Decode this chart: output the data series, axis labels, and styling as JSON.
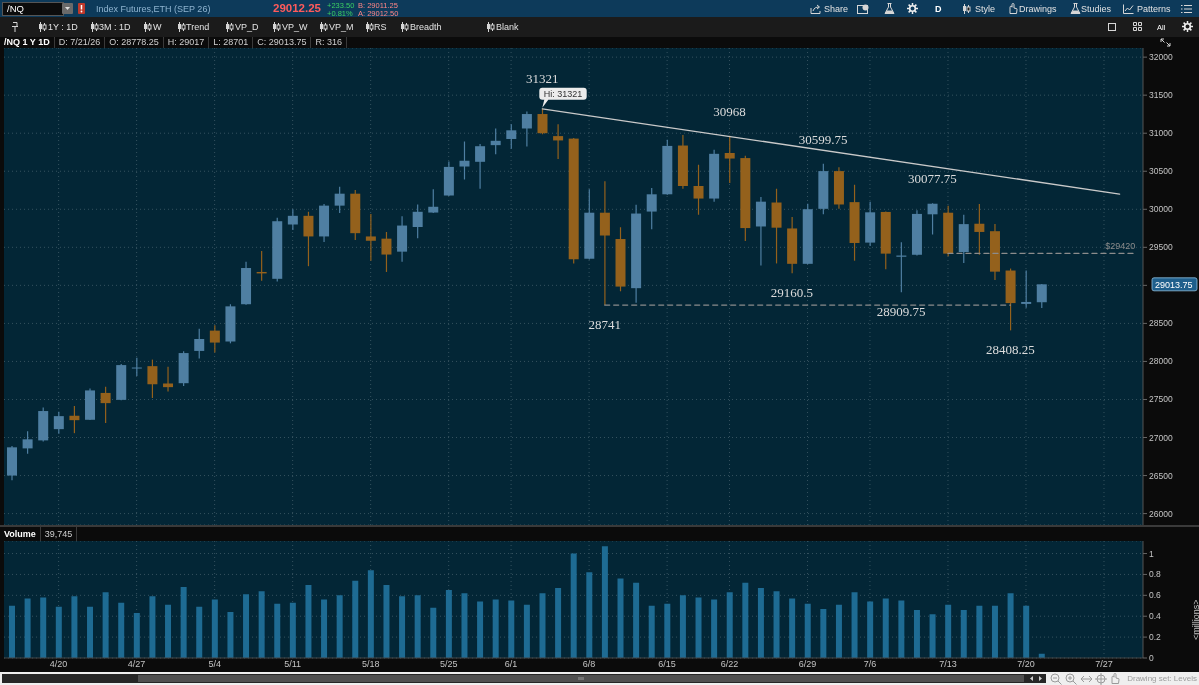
{
  "chart_data": [
    {
      "type": "other",
      "annotations": [
        "/NQ",
        "Index Futures,ETH (SEP 26)",
        "29012.25",
        "+233.50",
        "+0.81%",
        "B: 29011.25",
        "A: 29012.50",
        "Share",
        "D",
        "Style",
        "Drawings",
        "Studies",
        "Patterns",
        "1Y : 1D",
        "3M : 1D",
        "W",
        "Trend",
        "VP_D",
        "VP_W",
        "VP_M",
        "RS",
        "Breadth",
        "Blank",
        "All"
      ]
    },
    {
      "type": "candlestick",
      "title": "/NQ 1 Y 1D",
      "annotations": [
        "D: 7/21/26",
        "O: 28778.25",
        "H: 29017",
        "L: 28701",
        "C: 29013.75",
        "R: 316",
        {
          "text": "31321",
          "y": 31321
        },
        {
          "text": "Hi: 31321",
          "y": 31321
        },
        {
          "text": "30968",
          "y": 30968
        },
        {
          "text": "30599.75",
          "y": 30599.75
        },
        {
          "text": "30077.75",
          "y": 30077.75
        },
        {
          "text": "28741",
          "y": 28741
        },
        {
          "text": "29160.5",
          "y": 29160.5
        },
        {
          "text": "28909.75",
          "y": 28909.75
        },
        {
          "text": "28408.25",
          "y": 28408.25
        },
        {
          "text": "$29420",
          "y": 29420
        },
        "29013.75"
      ],
      "categories": [
        null,
        null,
        null,
        null,
        null,
        null,
        null,
        null,
        null,
        null,
        null,
        null,
        null,
        null,
        null,
        null,
        null,
        null,
        null,
        null,
        null,
        null,
        null,
        null,
        null,
        null,
        null,
        null,
        null,
        null,
        null,
        null,
        null,
        null,
        null,
        null,
        null,
        null,
        null,
        null,
        null,
        null,
        null,
        null,
        null,
        null,
        null,
        null,
        null,
        null,
        null,
        null,
        null,
        null,
        null,
        null,
        null,
        null,
        null,
        null,
        null,
        null,
        null,
        null,
        null,
        null,
        null,
        null,
        null,
        null,
        null,
        null,
        null
      ],
      "ohlc": [
        [
          26500,
          26890,
          26438,
          26871
        ],
        [
          26857,
          27081,
          26786,
          26976
        ],
        [
          26962,
          27395,
          26948,
          27348
        ],
        [
          27110,
          27338,
          27048,
          27281
        ],
        [
          27286,
          27414,
          27057,
          27228
        ],
        [
          27233,
          27643,
          27230,
          27619
        ],
        [
          27586,
          27667,
          27190,
          27452
        ],
        [
          27495,
          27967,
          27490,
          27952
        ],
        [
          27915,
          28048,
          27809,
          27920
        ],
        [
          27938,
          28024,
          27519,
          27700
        ],
        [
          27710,
          27929,
          27605,
          27662
        ],
        [
          27714,
          28133,
          27676,
          28110
        ],
        [
          28138,
          28428,
          28038,
          28295
        ],
        [
          28405,
          28476,
          28119,
          28248
        ],
        [
          28262,
          28752,
          28238,
          28724
        ],
        [
          28752,
          29310,
          28745,
          29228
        ],
        [
          29176,
          29452,
          29062,
          29157
        ],
        [
          29086,
          29890,
          29052,
          29843
        ],
        [
          29800,
          30000,
          29729,
          29914
        ],
        [
          29914,
          29967,
          29252,
          29643
        ],
        [
          29643,
          30071,
          29571,
          30048
        ],
        [
          30048,
          30295,
          29952,
          30205
        ],
        [
          30205,
          30252,
          29595,
          29686
        ],
        [
          29643,
          29938,
          29324,
          29586
        ],
        [
          29614,
          29700,
          29176,
          29405
        ],
        [
          29443,
          29910,
          29310,
          29786
        ],
        [
          29767,
          30062,
          29619,
          29967
        ],
        [
          29957,
          30262,
          29950,
          30033
        ],
        [
          30181,
          30629,
          30175,
          30557
        ],
        [
          30562,
          30890,
          30390,
          30638
        ],
        [
          30624,
          30857,
          30271,
          30829
        ],
        [
          30843,
          31062,
          30724,
          30900
        ],
        [
          30924,
          31119,
          30795,
          31038
        ],
        [
          31062,
          31286,
          30824,
          31252
        ],
        [
          31252,
          31321,
          30986,
          31000
        ],
        [
          30962,
          31119,
          30662,
          30905
        ],
        [
          30929,
          30938,
          29286,
          29343
        ],
        [
          29350,
          30264,
          29340,
          29955
        ],
        [
          29955,
          30368,
          28741,
          29655
        ],
        [
          29609,
          29763,
          28922,
          28984
        ],
        [
          28963,
          30058,
          28772,
          29944
        ],
        [
          29970,
          30280,
          29738,
          30197
        ],
        [
          30197,
          30915,
          30190,
          30833
        ],
        [
          30838,
          30977,
          30270,
          30306
        ],
        [
          30306,
          30585,
          29929,
          30141
        ],
        [
          30141,
          30781,
          30099,
          30729
        ],
        [
          30740,
          30968,
          30347,
          30667
        ],
        [
          30673,
          30704,
          29583,
          29753
        ],
        [
          29774,
          30161,
          29262,
          30100
        ],
        [
          30089,
          30270,
          29288,
          29758
        ],
        [
          29748,
          29898,
          29160.5,
          29283
        ],
        [
          29283,
          30073,
          29278,
          30001
        ],
        [
          30006,
          30599.75,
          29934,
          30502
        ],
        [
          30502,
          30554,
          30006,
          30063
        ],
        [
          30094,
          30321,
          29324,
          29557
        ],
        [
          29562,
          30099,
          29516,
          29960
        ],
        [
          29965,
          29970,
          29211,
          29417
        ],
        [
          29376,
          29567,
          28909.75,
          29392
        ],
        [
          29402,
          29986,
          29392,
          29939
        ],
        [
          29934,
          30077.75,
          29670,
          30073
        ],
        [
          29955,
          30048,
          29381,
          29417
        ],
        [
          29438,
          29929,
          29294,
          29805
        ],
        [
          29810,
          30068,
          29402,
          29702
        ],
        [
          29712,
          29805,
          29072,
          29180
        ],
        [
          29195,
          29221,
          28408.25,
          28767
        ],
        [
          28756,
          29195,
          28705,
          28782
        ],
        [
          28778.25,
          29017,
          28701,
          29013.75
        ],
        null,
        null,
        null,
        null,
        null,
        null
      ],
      "colors": [
        "#4f7fa2",
        "#4f7fa2",
        "#4f7fa2",
        "#4f7fa2",
        "#94611c",
        "#4f7fa2",
        "#94611c",
        "#4f7fa2",
        "#4f7fa2",
        "#94611c",
        "#94611c",
        "#4f7fa2",
        "#4f7fa2",
        "#94611c",
        "#4f7fa2",
        "#4f7fa2",
        "#94611c",
        "#4f7fa2",
        "#4f7fa2",
        "#94611c",
        "#4f7fa2",
        "#4f7fa2",
        "#94611c",
        "#94611c",
        "#94611c",
        "#4f7fa2",
        "#4f7fa2",
        "#4f7fa2",
        "#4f7fa2",
        "#4f7fa2",
        "#4f7fa2",
        "#4f7fa2",
        "#4f7fa2",
        "#4f7fa2",
        "#94611c",
        "#94611c",
        "#94611c",
        "#4f7fa2",
        "#94611c",
        "#94611c",
        "#4f7fa2",
        "#4f7fa2",
        "#4f7fa2",
        "#94611c",
        "#94611c",
        "#4f7fa2",
        "#94611c",
        "#94611c",
        "#4f7fa2",
        "#94611c",
        "#94611c",
        "#4f7fa2",
        "#4f7fa2",
        "#94611c",
        "#94611c",
        "#4f7fa2",
        "#94611c",
        "#4f7fa2",
        "#4f7fa2",
        "#4f7fa2",
        "#94611c",
        "#4f7fa2",
        "#94611c",
        "#94611c",
        "#94611c",
        "#4f7fa2",
        "#4f7fa2",
        null,
        null,
        null,
        null,
        null,
        null
      ],
      "series": [
        {
          "type": "line",
          "color": "#c9c9c9",
          "line_style": "solid",
          "values": [
            null,
            null,
            null,
            null,
            null,
            null,
            null,
            null,
            null,
            null,
            null,
            null,
            null,
            null,
            null,
            null,
            null,
            null,
            null,
            null,
            null,
            null,
            null,
            null,
            null,
            null,
            null,
            null,
            null,
            null,
            null,
            null,
            null,
            null,
            31321,
            null,
            null,
            null,
            null,
            null,
            null,
            null,
            null,
            null,
            null,
            null,
            null,
            null,
            null,
            null,
            null,
            null,
            null,
            null,
            null,
            null,
            null,
            null,
            null,
            null,
            null,
            null,
            null,
            null,
            null,
            null,
            null,
            null,
            null,
            null,
            null,
            30200,
            null
          ]
        },
        {
          "type": "line",
          "color": "#8c8c8c",
          "line_style": "dashed",
          "values": [
            null,
            null,
            null,
            null,
            null,
            null,
            null,
            null,
            null,
            null,
            null,
            null,
            null,
            null,
            null,
            null,
            null,
            null,
            null,
            null,
            null,
            null,
            null,
            null,
            null,
            null,
            null,
            null,
            null,
            null,
            null,
            null,
            null,
            null,
            null,
            null,
            null,
            null,
            28741,
            null,
            null,
            null,
            null,
            null,
            null,
            null,
            null,
            null,
            null,
            null,
            null,
            null,
            null,
            null,
            null,
            null,
            null,
            null,
            null,
            null,
            null,
            null,
            null,
            null,
            28741,
            null,
            null,
            null,
            null,
            null,
            null,
            null,
            null
          ]
        },
        {
          "type": "line",
          "color": "#8c8c8c",
          "line_style": "dashed",
          "values": [
            null,
            null,
            null,
            null,
            null,
            null,
            null,
            null,
            null,
            null,
            null,
            null,
            null,
            null,
            null,
            null,
            null,
            null,
            null,
            null,
            null,
            null,
            null,
            null,
            null,
            null,
            null,
            null,
            null,
            null,
            null,
            null,
            null,
            null,
            null,
            null,
            null,
            null,
            null,
            null,
            null,
            null,
            null,
            null,
            null,
            null,
            null,
            null,
            null,
            null,
            null,
            null,
            null,
            null,
            null,
            null,
            null,
            null,
            null,
            null,
            29420,
            null,
            null,
            null,
            null,
            null,
            null,
            null,
            null,
            null,
            null,
            null,
            29420
          ]
        }
      ],
      "ylim": [
        25850,
        32120
      ],
      "yticks": [
        26000,
        26500,
        27000,
        27500,
        28000,
        28500,
        {
          "value": 29000,
          "label": null
        },
        29500,
        30000,
        30500,
        31000,
        31500,
        32000
      ],
      "grid": true,
      "tick_labels": "y"
    },
    {
      "type": "bar",
      "title": "Volume",
      "annotations": [
        "39,745",
        "Drawing set: Levels"
      ],
      "ylabel": "<millions>",
      "categories": [
        null,
        null,
        null,
        "4/20",
        null,
        null,
        null,
        null,
        "4/27",
        null,
        null,
        null,
        null,
        "5/4",
        null,
        null,
        null,
        null,
        "5/11",
        null,
        null,
        null,
        null,
        "5/18",
        null,
        null,
        null,
        null,
        "5/25",
        null,
        null,
        null,
        "6/1",
        null,
        null,
        null,
        null,
        "6/8",
        null,
        null,
        null,
        null,
        "6/15",
        null,
        null,
        null,
        "6/22",
        null,
        null,
        null,
        null,
        "6/29",
        null,
        null,
        null,
        "7/6",
        null,
        null,
        null,
        null,
        "7/13",
        null,
        null,
        null,
        null,
        "7/20",
        null,
        null,
        null,
        null,
        "7/27",
        null,
        null
      ],
      "values": [
        0.5,
        0.57,
        0.58,
        0.49,
        0.59,
        0.49,
        0.63,
        0.53,
        0.43,
        0.59,
        0.51,
        0.68,
        0.49,
        0.56,
        0.44,
        0.61,
        0.64,
        0.52,
        0.53,
        0.7,
        0.56,
        0.6,
        0.74,
        0.84,
        0.7,
        0.59,
        0.6,
        0.48,
        0.65,
        0.62,
        0.54,
        0.56,
        0.55,
        0.51,
        0.62,
        0.67,
        1.0,
        0.82,
        1.07,
        0.76,
        0.72,
        0.5,
        0.52,
        0.6,
        0.58,
        0.56,
        0.63,
        0.72,
        0.67,
        0.64,
        0.57,
        0.52,
        0.47,
        0.51,
        0.63,
        0.54,
        0.57,
        0.55,
        0.46,
        0.42,
        0.51,
        0.46,
        0.5,
        0.5,
        0.62,
        0.5,
        0.039745,
        null,
        null,
        null,
        null,
        null,
        null
      ],
      "color": "#1e6b93",
      "ylim": [
        0,
        1.12
      ],
      "yticks": [
        0,
        0.2,
        0.4,
        0.6,
        0.8,
        1
      ],
      "grid": true
    }
  ]
}
